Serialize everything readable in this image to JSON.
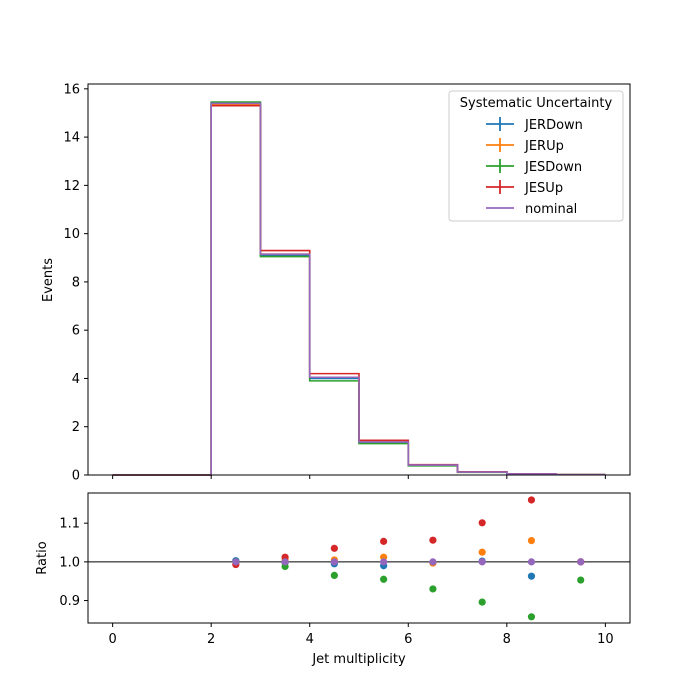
{
  "chart_data": [
    {
      "type": "histogram-step",
      "title": "",
      "xlabel": "",
      "ylabel": "Events",
      "xlim": [
        -0.5,
        10.5
      ],
      "ylim": [
        0,
        16.2
      ],
      "yticks": [
        0,
        2,
        4,
        6,
        8,
        10,
        12,
        14,
        16
      ],
      "bin_edges": [
        0,
        1,
        2,
        3,
        4,
        5,
        6,
        7,
        8,
        9,
        10
      ],
      "legend": {
        "title": "Systematic Uncertainty",
        "placement": "top-right"
      },
      "series": [
        {
          "name": "JERDown",
          "color": "#1f77b4",
          "marker": "errorbar",
          "values": [
            0,
            0,
            15.4,
            9.1,
            4.0,
            1.34,
            0.41,
            0.12,
            0.04,
            0.015
          ]
        },
        {
          "name": "JERUp",
          "color": "#ff7f0e",
          "marker": "errorbar",
          "values": [
            0,
            0,
            15.35,
            9.15,
            4.05,
            1.38,
            0.41,
            0.125,
            0.045,
            0.015
          ]
        },
        {
          "name": "JESDown",
          "color": "#2ca02c",
          "marker": "errorbar",
          "values": [
            0,
            0,
            15.45,
            9.05,
            3.9,
            1.3,
            0.38,
            0.11,
            0.035,
            0.014
          ]
        },
        {
          "name": "JESUp",
          "color": "#d62728",
          "marker": "errorbar",
          "values": [
            0,
            0,
            15.3,
            9.3,
            4.2,
            1.44,
            0.43,
            0.13,
            0.05,
            0.015
          ]
        },
        {
          "name": "nominal",
          "color": "#9467bd",
          "marker": "line",
          "values": [
            0,
            0,
            15.4,
            9.15,
            4.05,
            1.37,
            0.41,
            0.12,
            0.043,
            0.015
          ]
        }
      ]
    },
    {
      "type": "scatter",
      "title": "",
      "xlabel": "Jet multiplicity",
      "ylabel": "Ratio",
      "xlim": [
        -0.5,
        10.5
      ],
      "ylim": [
        0.842,
        1.178
      ],
      "xticks": [
        0,
        2,
        4,
        6,
        8,
        10
      ],
      "yticks": [
        "0.9",
        "1.0",
        "1.1"
      ],
      "reference_line": 1.0,
      "x": [
        2.5,
        3.5,
        4.5,
        5.5,
        6.5,
        7.5,
        8.5,
        9.5
      ],
      "series": [
        {
          "name": "JERDown",
          "color": "#1f77b4",
          "values": [
            1.003,
            0.998,
            0.995,
            0.99,
            0.998,
            1.002,
            0.963,
            1.0
          ]
        },
        {
          "name": "JERUp",
          "color": "#ff7f0e",
          "values": [
            0.997,
            1.005,
            1.005,
            1.012,
            0.997,
            1.025,
            1.055,
            1.0
          ]
        },
        {
          "name": "JESDown",
          "color": "#2ca02c",
          "values": [
            1.0,
            0.988,
            0.965,
            0.955,
            0.93,
            0.896,
            0.858,
            0.953
          ]
        },
        {
          "name": "JESUp",
          "color": "#d62728",
          "values": [
            0.993,
            1.012,
            1.035,
            1.053,
            1.056,
            1.101,
            1.16,
            1.0
          ]
        },
        {
          "name": "nominal",
          "color": "#9467bd",
          "values": [
            1.0,
            1.0,
            1.0,
            1.0,
            1.0,
            1.0,
            1.0,
            1.0
          ]
        }
      ]
    }
  ]
}
